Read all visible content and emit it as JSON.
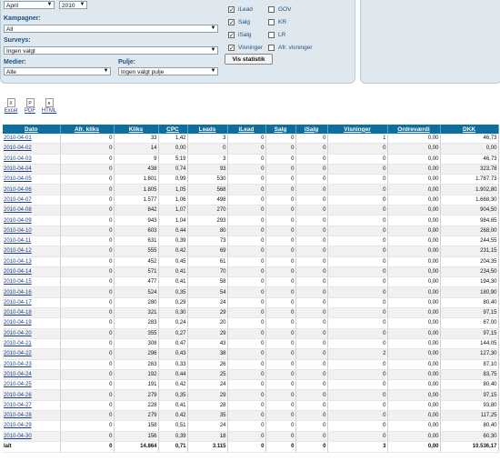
{
  "filters": {
    "month": "April",
    "year": "2010",
    "kampagner_label": "Kampagner:",
    "kampagner_value": "All",
    "surveys_label": "Surveys:",
    "surveys_value": "Ingen valgt",
    "medier_label": "Medier:",
    "medier_value": "Alle",
    "pulje_label": "Pulje:",
    "pulje_value": "Ingen valgt pulje",
    "checkboxes_left": [
      {
        "label": "iLead",
        "checked": true
      },
      {
        "label": "Salg",
        "checked": true
      },
      {
        "label": "iSalg",
        "checked": true
      },
      {
        "label": "Visninger",
        "checked": true
      }
    ],
    "checkboxes_right": [
      {
        "label": "GOV",
        "checked": false
      },
      {
        "label": "KR",
        "checked": false
      },
      {
        "label": "LR",
        "checked": false
      },
      {
        "label": "Afr. visninger",
        "checked": false
      }
    ],
    "submit_label": "Vis statistik"
  },
  "exports": [
    {
      "label": "Excel",
      "icon": "excel-icon",
      "glyph": "X"
    },
    {
      "label": "PDF",
      "icon": "pdf-icon",
      "glyph": "P"
    },
    {
      "label": "HTML",
      "icon": "html-icon",
      "glyph": "e"
    }
  ],
  "table": {
    "headers": [
      "Dato",
      "Afr. kliks",
      "Kliks",
      "CPC",
      "Leads",
      "iLead",
      "Salg",
      "iSalg",
      "Visninger",
      "Ordreværdi",
      "DKK"
    ],
    "rows": [
      [
        "2010-04-01",
        "0",
        "33",
        "1,42",
        "3",
        "0",
        "0",
        "0",
        "1",
        "0,00",
        "46,73"
      ],
      [
        "2010-04-02",
        "0",
        "14",
        "0,00",
        "0",
        "0",
        "0",
        "0",
        "0",
        "0,00",
        "0,00"
      ],
      [
        "2010-04-03",
        "0",
        "9",
        "5,19",
        "3",
        "0",
        "0",
        "0",
        "0",
        "0,00",
        "46,73"
      ],
      [
        "2010-04-04",
        "0",
        "438",
        "0,74",
        "93",
        "0",
        "0",
        "0",
        "0",
        "0,00",
        "323,78"
      ],
      [
        "2010-04-05",
        "0",
        "1.801",
        "0,99",
        "530",
        "0",
        "0",
        "0",
        "0",
        "0,00",
        "1.787,73"
      ],
      [
        "2010-04-06",
        "0",
        "1.805",
        "1,05",
        "568",
        "0",
        "0",
        "0",
        "0",
        "0,00",
        "1.902,80"
      ],
      [
        "2010-04-07",
        "0",
        "1.577",
        "1,06",
        "498",
        "0",
        "0",
        "0",
        "0",
        "0,00",
        "1.668,30"
      ],
      [
        "2010-04-08",
        "0",
        "842",
        "1,07",
        "270",
        "0",
        "0",
        "0",
        "0",
        "0,00",
        "904,50"
      ],
      [
        "2010-04-09",
        "0",
        "943",
        "1,04",
        "293",
        "0",
        "0",
        "0",
        "0",
        "0,00",
        "984,65"
      ],
      [
        "2010-04-10",
        "0",
        "603",
        "0,44",
        "80",
        "0",
        "0",
        "0",
        "0",
        "0,00",
        "268,00"
      ],
      [
        "2010-04-11",
        "0",
        "631",
        "0,39",
        "73",
        "0",
        "0",
        "0",
        "0",
        "0,00",
        "244,55"
      ],
      [
        "2010-04-12",
        "0",
        "555",
        "0,42",
        "69",
        "0",
        "0",
        "0",
        "0",
        "0,00",
        "231,15"
      ],
      [
        "2010-04-13",
        "0",
        "452",
        "0,45",
        "61",
        "0",
        "0",
        "0",
        "0",
        "0,00",
        "204,35"
      ],
      [
        "2010-04-14",
        "0",
        "571",
        "0,41",
        "70",
        "0",
        "0",
        "0",
        "0",
        "0,00",
        "234,50"
      ],
      [
        "2010-04-15",
        "0",
        "477",
        "0,41",
        "58",
        "0",
        "0",
        "0",
        "0",
        "0,00",
        "194,30"
      ],
      [
        "2010-04-16",
        "0",
        "524",
        "0,35",
        "54",
        "0",
        "0",
        "0",
        "0",
        "0,00",
        "180,90"
      ],
      [
        "2010-04-17",
        "0",
        "280",
        "0,29",
        "24",
        "0",
        "0",
        "0",
        "0",
        "0,00",
        "80,40"
      ],
      [
        "2010-04-18",
        "0",
        "321",
        "0,30",
        "29",
        "0",
        "0",
        "0",
        "0",
        "0,00",
        "97,15"
      ],
      [
        "2010-04-19",
        "0",
        "283",
        "0,24",
        "20",
        "0",
        "0",
        "0",
        "0",
        "0,00",
        "67,00"
      ],
      [
        "2010-04-20",
        "0",
        "355",
        "0,27",
        "29",
        "0",
        "0",
        "0",
        "0",
        "0,00",
        "97,15"
      ],
      [
        "2010-04-21",
        "0",
        "308",
        "0,47",
        "43",
        "0",
        "0",
        "0",
        "0",
        "0,00",
        "144,05"
      ],
      [
        "2010-04-22",
        "0",
        "296",
        "0,43",
        "38",
        "0",
        "0",
        "0",
        "2",
        "0,00",
        "127,30"
      ],
      [
        "2010-04-23",
        "0",
        "263",
        "0,33",
        "26",
        "0",
        "0",
        "0",
        "0",
        "0,00",
        "87,10"
      ],
      [
        "2010-04-24",
        "0",
        "192",
        "0,44",
        "25",
        "0",
        "0",
        "0",
        "0",
        "0,00",
        "83,75"
      ],
      [
        "2010-04-25",
        "0",
        "191",
        "0,42",
        "24",
        "0",
        "0",
        "0",
        "0",
        "0,00",
        "80,40"
      ],
      [
        "2010-04-26",
        "0",
        "279",
        "0,35",
        "29",
        "0",
        "0",
        "0",
        "0",
        "0,00",
        "97,15"
      ],
      [
        "2010-04-27",
        "0",
        "228",
        "0,41",
        "28",
        "0",
        "0",
        "0",
        "0",
        "0,00",
        "93,80"
      ],
      [
        "2010-04-28",
        "0",
        "279",
        "0,42",
        "35",
        "0",
        "0",
        "0",
        "0",
        "0,00",
        "117,25"
      ],
      [
        "2010-04-29",
        "0",
        "158",
        "0,51",
        "24",
        "0",
        "0",
        "0",
        "0",
        "0,00",
        "80,40"
      ],
      [
        "2010-04-30",
        "0",
        "156",
        "0,39",
        "18",
        "0",
        "0",
        "0",
        "0",
        "0,00",
        "60,30"
      ]
    ],
    "total": [
      "Ialt",
      "0",
      "14.864",
      "0,71",
      "3.115",
      "0",
      "0",
      "0",
      "3",
      "0,00",
      "10.536,17"
    ]
  },
  "colors": {
    "header_bg": "#0d6f9f",
    "panel_bg": "#dfe8ee",
    "link": "#1c3f8a"
  }
}
